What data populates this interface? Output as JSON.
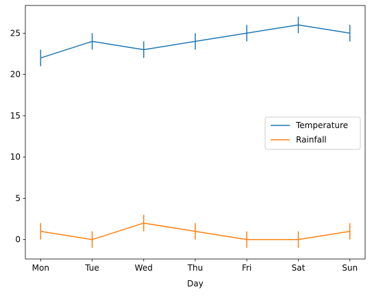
{
  "chart_data": {
    "type": "line",
    "categories": [
      "Mon",
      "Tue",
      "Wed",
      "Thu",
      "Fri",
      "Sat",
      "Sun"
    ],
    "series": [
      {
        "name": "Temperature",
        "values": [
          22,
          24,
          23,
          24,
          25,
          26,
          25
        ],
        "error": [
          1,
          1,
          1,
          1,
          1,
          1,
          1
        ],
        "color": "#1f77b4"
      },
      {
        "name": "Rainfall",
        "values": [
          1,
          0,
          2,
          1,
          0,
          0,
          1
        ],
        "error": [
          1,
          1,
          1,
          1,
          1,
          1,
          1
        ],
        "color": "#ff7f0e"
      }
    ],
    "title": "",
    "xlabel": "Day",
    "ylabel": "",
    "ylim": [
      -2.35,
      28.35
    ],
    "yticks": [
      0,
      5,
      10,
      15,
      20,
      25
    ],
    "grid": false,
    "legend_position": "center-right"
  }
}
